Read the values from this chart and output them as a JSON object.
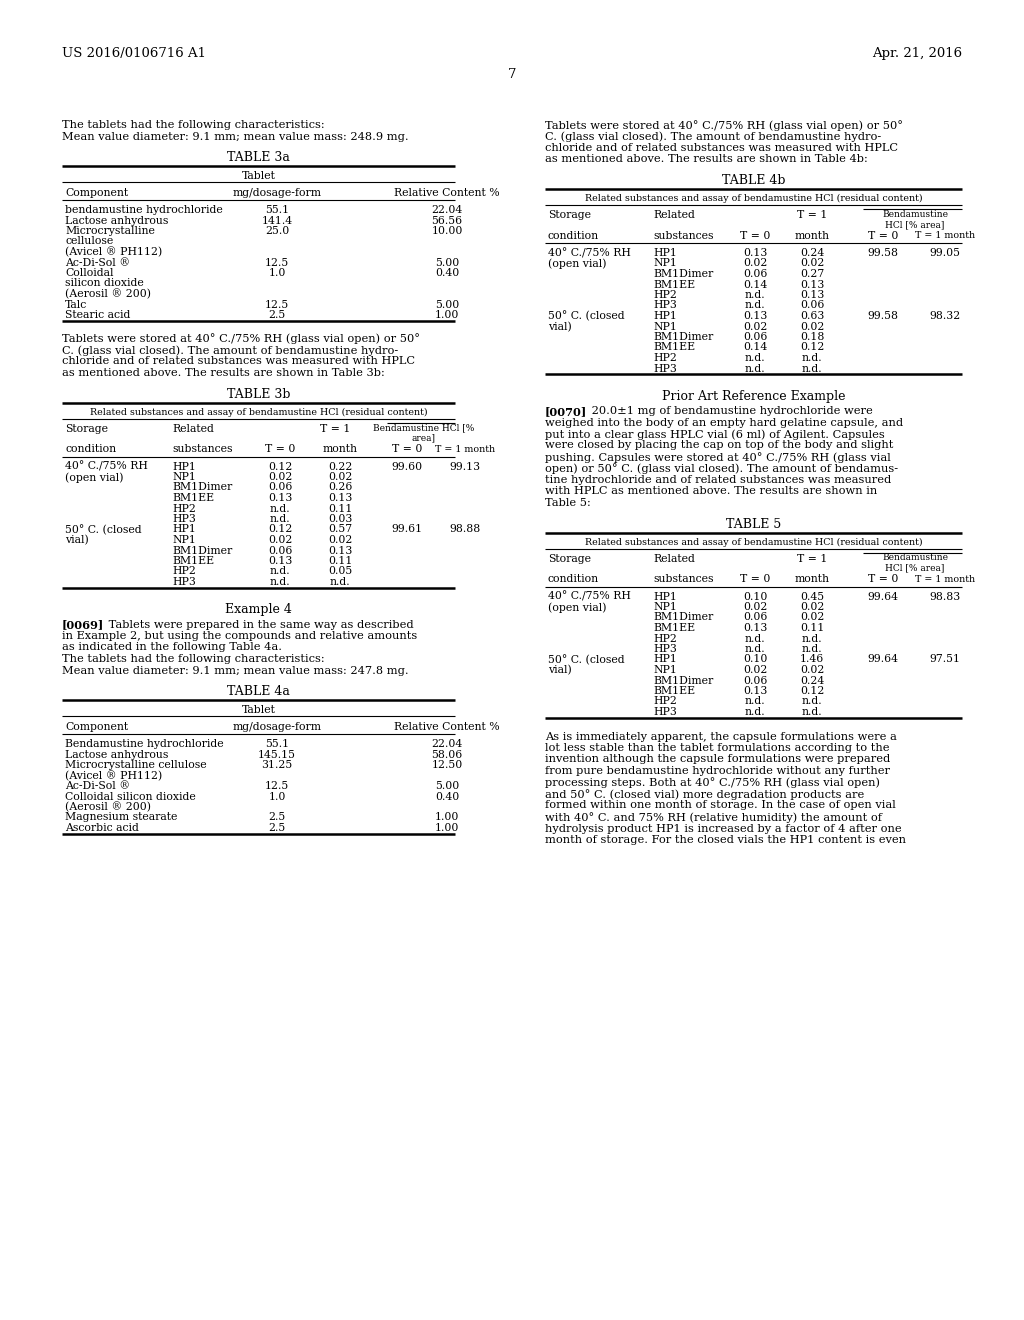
{
  "header_left": "US 2016/0106716 A1",
  "header_right": "Apr. 21, 2016",
  "page_number": "7",
  "left_col": {
    "intro_line1": "The tablets had the following characteristics:",
    "intro_line2": "Mean value diameter: 9.1 mm; mean value mass: 248.9 mg.",
    "table3a_title": "TABLE 3a",
    "table3a_subtitle": "Tablet",
    "table3a_headers": [
      "Component",
      "mg/dosage-form",
      "Relative Content %"
    ],
    "table3a_rows": [
      [
        "bendamustine hydrochloride",
        "55.1",
        "22.04"
      ],
      [
        "Lactose anhydrous",
        "141.4",
        "56.56"
      ],
      [
        "Microcrystalline",
        "25.0",
        "10.00"
      ],
      [
        "cellulose",
        "",
        ""
      ],
      [
        "(Avicel ® PH112)",
        "",
        ""
      ],
      [
        "Ac-Di-Sol ®",
        "12.5",
        "5.00"
      ],
      [
        "Colloidal",
        "1.0",
        "0.40"
      ],
      [
        "silicon dioxide",
        "",
        ""
      ],
      [
        "(Aerosil ® 200)",
        "",
        ""
      ],
      [
        "Talc",
        "12.5",
        "5.00"
      ],
      [
        "Stearic acid",
        "2.5",
        "1.00"
      ]
    ],
    "para3b_lines": [
      "Tablets were stored at 40° C./75% RH (glass vial open) or 50°",
      "C. (glass vial closed). The amount of bendamustine hydro-",
      "chloride and of related substances was measured with HPLC",
      "as mentioned above. The results are shown in Table 3b:"
    ],
    "table3b_title": "TABLE 3b",
    "table3b_subtitle": "Related substances and assay of bendamustine HCl (residual content)",
    "table3b_rows": [
      [
        "40° C./75% RH",
        "(open vial)",
        "HP1",
        "0.12",
        "0.22",
        "99.60",
        "99.13"
      ],
      [
        "",
        "",
        "NP1",
        "0.02",
        "0.02",
        "",
        ""
      ],
      [
        "",
        "",
        "BM1Dimer",
        "0.06",
        "0.26",
        "",
        ""
      ],
      [
        "",
        "",
        "BM1EE",
        "0.13",
        "0.13",
        "",
        ""
      ],
      [
        "",
        "",
        "HP2",
        "n.d.",
        "0.11",
        "",
        ""
      ],
      [
        "",
        "",
        "HP3",
        "n.d.",
        "0.03",
        "",
        ""
      ],
      [
        "50° C. (closed",
        "vial)",
        "HP1",
        "0.12",
        "0.57",
        "99.61",
        "98.88"
      ],
      [
        "",
        "",
        "NP1",
        "0.02",
        "0.02",
        "",
        ""
      ],
      [
        "",
        "",
        "BM1Dimer",
        "0.06",
        "0.13",
        "",
        ""
      ],
      [
        "",
        "",
        "BM1EE",
        "0.13",
        "0.11",
        "",
        ""
      ],
      [
        "",
        "",
        "HP2",
        "n.d.",
        "0.05",
        "",
        ""
      ],
      [
        "",
        "",
        "HP3",
        "n.d.",
        "n.d.",
        "",
        ""
      ]
    ],
    "example4_title": "Example 4",
    "para4_lines": [
      "[0069]   Tablets were prepared in the same way as described",
      "in Example 2, but using the compounds and relative amounts",
      "as indicated in the following Table 4a.",
      "The tablets had the following characteristics:",
      "Mean value diameter: 9.1 mm; mean value mass: 247.8 mg."
    ],
    "table4a_title": "TABLE 4a",
    "table4a_subtitle": "Tablet",
    "table4a_headers": [
      "Component",
      "mg/dosage-form",
      "Relative Content %"
    ],
    "table4a_rows": [
      [
        "Bendamustine hydrochloride",
        "55.1",
        "22.04"
      ],
      [
        "Lactose anhydrous",
        "145.15",
        "58.06"
      ],
      [
        "Microcrystalline cellulose",
        "31.25",
        "12.50"
      ],
      [
        "(Avicel ® PH112)",
        "",
        ""
      ],
      [
        "Ac-Di-Sol ®",
        "12.5",
        "5.00"
      ],
      [
        "Colloidal silicon dioxide",
        "1.0",
        "0.40"
      ],
      [
        "(Aerosil ® 200)",
        "",
        ""
      ],
      [
        "Magnesium stearate",
        "2.5",
        "1.00"
      ],
      [
        "Ascorbic acid",
        "2.5",
        "1.00"
      ]
    ]
  },
  "right_col": {
    "intro_lines": [
      "Tablets were stored at 40° C./75% RH (glass vial open) or 50°",
      "C. (glass vial closed). The amount of bendamustine hydro-",
      "chloride and of related substances was measured with HPLC",
      "as mentioned above. The results are shown in Table 4b:"
    ],
    "table4b_title": "TABLE 4b",
    "table4b_subtitle": "Related substances and assay of bendamustine HCl (residual content)",
    "table4b_rows": [
      [
        "40° C./75% RH",
        "(open vial)",
        "HP1",
        "0.13",
        "0.24",
        "99.58",
        "99.05"
      ],
      [
        "",
        "",
        "NP1",
        "0.02",
        "0.02",
        "",
        ""
      ],
      [
        "",
        "",
        "BM1Dimer",
        "0.06",
        "0.27",
        "",
        ""
      ],
      [
        "",
        "",
        "BM1EE",
        "0.14",
        "0.13",
        "",
        ""
      ],
      [
        "",
        "",
        "HP2",
        "n.d.",
        "0.13",
        "",
        ""
      ],
      [
        "",
        "",
        "HP3",
        "n.d.",
        "0.06",
        "",
        ""
      ],
      [
        "50° C. (closed",
        "vial)",
        "HP1",
        "0.13",
        "0.63",
        "99.58",
        "98.32"
      ],
      [
        "",
        "",
        "NP1",
        "0.02",
        "0.02",
        "",
        ""
      ],
      [
        "",
        "",
        "BM1Dimer",
        "0.06",
        "0.18",
        "",
        ""
      ],
      [
        "",
        "",
        "BM1EE",
        "0.14",
        "0.12",
        "",
        ""
      ],
      [
        "",
        "",
        "HP2",
        "n.d.",
        "n.d.",
        "",
        ""
      ],
      [
        "",
        "",
        "HP3",
        "n.d.",
        "n.d.",
        "",
        ""
      ]
    ],
    "prior_art_title": "Prior Art Reference Example",
    "para70_lines": [
      "[0070]   20.0±1 mg of bendamustine hydrochloride were",
      "weighed into the body of an empty hard gelatine capsule, and",
      "put into a clear glass HPLC vial (6 ml) of Agilent. Capsules",
      "were closed by placing the cap on top of the body and slight",
      "pushing. Capsules were stored at 40° C./75% RH (glass vial",
      "open) or 50° C. (glass vial closed). The amount of bendamus-",
      "tine hydrochloride and of related substances was measured",
      "with HPLC as mentioned above. The results are shown in",
      "Table 5:"
    ],
    "table5_title": "TABLE 5",
    "table5_subtitle": "Related substances and assay of bendamustine HCl (residual content)",
    "table5_rows": [
      [
        "40° C./75% RH",
        "(open vial)",
        "HP1",
        "0.10",
        "0.45",
        "99.64",
        "98.83"
      ],
      [
        "",
        "",
        "NP1",
        "0.02",
        "0.02",
        "",
        ""
      ],
      [
        "",
        "",
        "BM1Dimer",
        "0.06",
        "0.02",
        "",
        ""
      ],
      [
        "",
        "",
        "BM1EE",
        "0.13",
        "0.11",
        "",
        ""
      ],
      [
        "",
        "",
        "HP2",
        "n.d.",
        "n.d.",
        "",
        ""
      ],
      [
        "",
        "",
        "HP3",
        "n.d.",
        "n.d.",
        "",
        ""
      ],
      [
        "50° C. (closed",
        "vial)",
        "HP1",
        "0.10",
        "1.46",
        "99.64",
        "97.51"
      ],
      [
        "",
        "",
        "NP1",
        "0.02",
        "0.02",
        "",
        ""
      ],
      [
        "",
        "",
        "BM1Dimer",
        "0.06",
        "0.24",
        "",
        ""
      ],
      [
        "",
        "",
        "BM1EE",
        "0.13",
        "0.12",
        "",
        ""
      ],
      [
        "",
        "",
        "HP2",
        "n.d.",
        "n.d.",
        "",
        ""
      ],
      [
        "",
        "",
        "HP3",
        "n.d.",
        "n.d.",
        "",
        ""
      ]
    ],
    "para_bottom_lines": [
      "As is immediately apparent, the capsule formulations were a",
      "lot less stable than the tablet formulations according to the",
      "invention although the capsule formulations were prepared",
      "from pure bendamustine hydrochloride without any further",
      "processing steps. Both at 40° C./75% RH (glass vial open)",
      "and 50° C. (closed vial) more degradation products are",
      "formed within one month of storage. In the case of open vial",
      "with 40° C. and 75% RH (relative humidity) the amount of",
      "hydrolysis product HP1 is increased by a factor of 4 after one",
      "month of storage. For the closed vials the HP1 content is even"
    ]
  }
}
